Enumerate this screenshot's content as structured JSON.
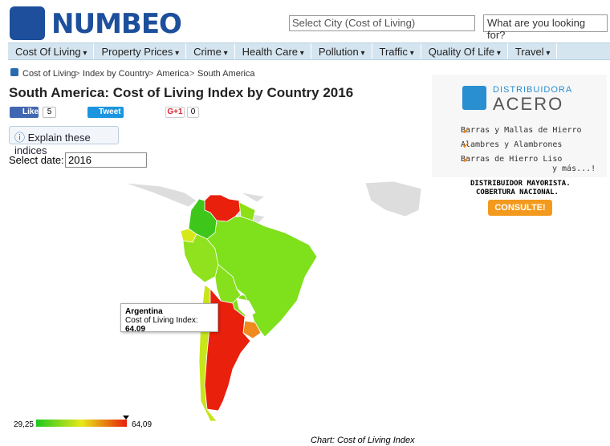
{
  "header": {
    "logo": "NUMBEO",
    "search_placeholder": "Select City (Cost of Living)",
    "looking_for": "What are you looking for?"
  },
  "nav": [
    "Cost Of Living",
    "Property Prices",
    "Crime",
    "Health Care",
    "Pollution",
    "Traffic",
    "Quality Of Life",
    "Travel"
  ],
  "breadcrumb": [
    "Cost of Living",
    "Index by Country",
    "America",
    "South America"
  ],
  "title": "South America: Cost of Living Index by Country 2016",
  "social": {
    "like": "Like",
    "like_count": "5",
    "tweet": "Tweet",
    "gplus": "G+1",
    "gplus_count": "0"
  },
  "explain_button": "Explain these indices",
  "date_select": {
    "label": "Select date:",
    "value": "2016"
  },
  "map": {
    "tooltip": {
      "country": "Argentina",
      "metric": "Cost of Living Index:",
      "value": "64.09"
    },
    "legend": {
      "min": "29,25",
      "max": "64,09"
    },
    "caption": "Chart: Cost of Living Index"
  },
  "ad": {
    "brand_top": "DISTRIBUIDORA",
    "brand": "ACERO",
    "items": [
      "Barras y Mallas de Hierro",
      "Alambres y Alambrones",
      "Barras de Hierro Liso"
    ],
    "more": "y más...!",
    "line1": "DISTRIBUIDOR MAYORISTA.",
    "line2": "COBERTURA NACIONAL.",
    "cta": "CONSULTE!"
  }
}
